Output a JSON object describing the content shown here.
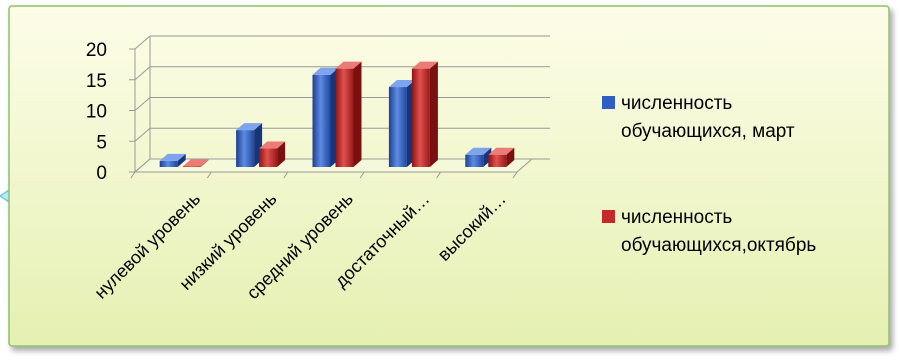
{
  "chart_data": {
    "type": "bar",
    "categories": [
      "нулевой уровень",
      "низкий уровень",
      "средний уровень",
      "достаточный…",
      "высокий…"
    ],
    "series": [
      {
        "name": "численность обучающихся, март",
        "legend_lines": [
          "численность",
          "обучающихся, март"
        ],
        "color": "#2f5fc4",
        "values": [
          1,
          6,
          15,
          13,
          2
        ]
      },
      {
        "name": "численность обучающихся,октябрь",
        "legend_lines": [
          "численность",
          "обучающихся,октябрь"
        ],
        "color": "#c42a2a",
        "values": [
          0,
          3,
          16,
          16,
          2
        ]
      }
    ],
    "y_ticks": [
      0,
      5,
      10,
      15,
      20
    ],
    "ylim": [
      0,
      20
    ],
    "grid": true,
    "legend_position": "right",
    "style": "3d-clustered-column"
  },
  "colors": {
    "frame_border": "#8fc06a",
    "background_top": "#fdfde8",
    "background_bottom": "#e5f0b2",
    "gridline": "#9a9a9a"
  }
}
